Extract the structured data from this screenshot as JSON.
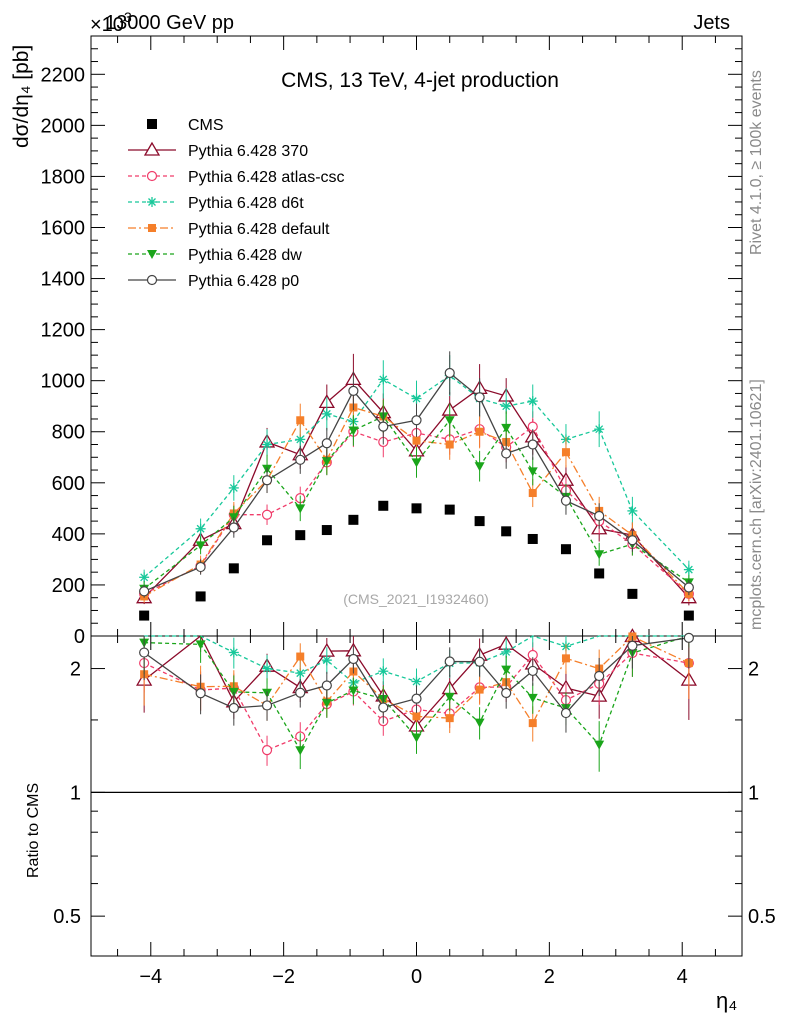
{
  "chart_data": {
    "type": "scatter",
    "header_left": "13000 GeV pp",
    "header_right": "Jets",
    "title": "CMS, 13 TeV, 4-jet production",
    "exponent_label": "×10",
    "exponent_power": "3",
    "ylabel": "dσ/dη₄ [pb]",
    "ratio_ylabel": "Ratio to CMS",
    "xlabel": "η₄",
    "analysis_tag": "(CMS_2021_I1932460)",
    "side_text_top": "Rivet 4.1.0, ≥ 100k events",
    "side_text_bottom": "mcplots.cern.ch [arXiv:2401.10621]",
    "xlim": [
      -4.9,
      4.9
    ],
    "ylim": [
      0,
      2350
    ],
    "ratio_ylim": [
      0.4,
      2.4
    ],
    "x_ticks": [
      -4,
      -2,
      0,
      2,
      4
    ],
    "x_tick_labels": [
      "−4",
      "−2",
      "0",
      "2",
      "4"
    ],
    "y_ticks": [
      0,
      200,
      400,
      600,
      800,
      1000,
      1200,
      1400,
      1600,
      1800,
      2000,
      2200
    ],
    "y_tick_labels": [
      "0",
      "200",
      "400",
      "600",
      "800",
      "1000",
      "1200",
      "1400",
      "1600",
      "1800",
      "2000",
      "2200"
    ],
    "ratio_ticks": [
      0.5,
      1,
      2
    ],
    "ratio_tick_labels": [
      "0.5",
      "1",
      "2"
    ],
    "x": [
      -4.1,
      -3.25,
      -2.75,
      -2.25,
      -1.75,
      -1.35,
      -0.95,
      -0.5,
      0,
      0.5,
      0.95,
      1.35,
      1.75,
      2.25,
      2.75,
      3.25,
      4.1
    ],
    "data": {
      "name": "CMS",
      "values": [
        80,
        155,
        265,
        375,
        395,
        415,
        455,
        510,
        500,
        495,
        450,
        410,
        380,
        340,
        245,
        165,
        80
      ]
    },
    "series": [
      {
        "name": "Pythia 6.428 370",
        "color": "#8b0a2a",
        "dash": "",
        "marker": "triangle-open",
        "values": [
          150,
          375,
          440,
          760,
          710,
          915,
          1005,
          875,
          725,
          885,
          970,
          940,
          780,
          610,
          420,
          395,
          150
        ],
        "err": [
          25,
          35,
          40,
          55,
          55,
          70,
          100,
          75,
          60,
          70,
          95,
          70,
          70,
          60,
          50,
          50,
          30
        ]
      },
      {
        "name": "Pythia 6.428 atlas-csc",
        "color": "#f03c6a",
        "dash": "4,3",
        "marker": "circle-open",
        "values": [
          165,
          275,
          475,
          475,
          540,
          680,
          800,
          760,
          795,
          770,
          810,
          740,
          820,
          570,
          450,
          360,
          165
        ],
        "err": [
          25,
          30,
          40,
          40,
          45,
          50,
          60,
          60,
          60,
          60,
          70,
          60,
          60,
          55,
          50,
          45,
          30
        ]
      },
      {
        "name": "Pythia 6.428 d6t",
        "color": "#18c89a",
        "dash": "4,3",
        "marker": "star",
        "values": [
          230,
          420,
          580,
          750,
          770,
          870,
          840,
          1005,
          930,
          1020,
          930,
          900,
          920,
          770,
          810,
          490,
          260
        ],
        "err": [
          30,
          40,
          50,
          60,
          60,
          65,
          70,
          75,
          70,
          80,
          75,
          70,
          65,
          60,
          70,
          55,
          35
        ]
      },
      {
        "name": "Pythia 6.428 default",
        "color": "#f57f2a",
        "dash": "8,3,2,3",
        "marker": "square",
        "values": [
          155,
          280,
          480,
          610,
          845,
          690,
          895,
          860,
          765,
          750,
          800,
          760,
          560,
          720,
          490,
          395,
          165
        ],
        "err": [
          25,
          35,
          45,
          50,
          65,
          55,
          70,
          65,
          60,
          60,
          65,
          60,
          55,
          60,
          55,
          50,
          30
        ]
      },
      {
        "name": "Pythia 6.428 dw",
        "color": "#1aa51a",
        "dash": "4,3",
        "marker": "triangle-down",
        "values": [
          185,
          355,
          465,
          655,
          500,
          685,
          805,
          860,
          680,
          845,
          665,
          815,
          645,
          545,
          320,
          360,
          210
        ],
        "err": [
          30,
          35,
          45,
          55,
          50,
          55,
          60,
          65,
          60,
          65,
          60,
          65,
          55,
          50,
          45,
          45,
          30
        ]
      },
      {
        "name": "Pythia 6.428 p0",
        "color": "#444444",
        "dash": "",
        "marker": "circle-open",
        "values": [
          175,
          270,
          425,
          610,
          690,
          755,
          960,
          820,
          845,
          1030,
          935,
          715,
          750,
          530,
          470,
          375,
          190
        ],
        "err": [
          25,
          30,
          40,
          50,
          55,
          60,
          75,
          70,
          65,
          85,
          75,
          60,
          60,
          55,
          50,
          45,
          30
        ]
      }
    ]
  }
}
